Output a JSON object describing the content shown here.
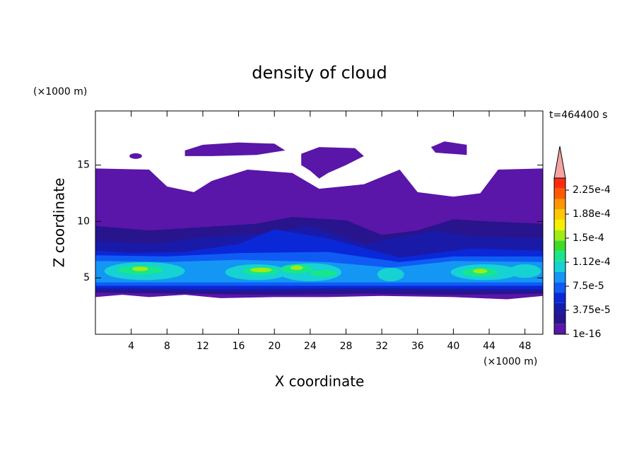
{
  "chart_data": {
    "type": "contour",
    "title": "density of cloud",
    "x_label": "X coordinate",
    "y_label": "Z coordinate",
    "x_unit": "(×1000 m)",
    "y_unit": "(×1000 m)",
    "annotation": "t=464400 s",
    "xlim": [
      0,
      50
    ],
    "xticks": [
      4,
      8,
      12,
      16,
      20,
      24,
      28,
      32,
      36,
      40,
      44,
      48
    ],
    "ylim": [
      0,
      19.8
    ],
    "yticks": [
      5,
      10,
      15
    ],
    "colorbar": {
      "lim": [
        1e-16,
        0.00024375
      ],
      "ticks": [
        1e-16,
        {
          "value": 3.75e-05,
          "label": "3.75e-5"
        },
        {
          "value": 7.5e-05,
          "label": "7.5e-5"
        },
        {
          "value": 0.0001125,
          "label": "1.12e-4"
        },
        {
          "value": 0.00015,
          "label": "1.5e-4"
        },
        {
          "value": 0.0001875,
          "label": "1.88e-4"
        },
        {
          "value": 0.000225,
          "label": "2.25e-4"
        }
      ],
      "colors": [
        "#5a16a8",
        "#28148c",
        "#1a1aa8",
        "#0a28d8",
        "#0f5cf5",
        "#1496f5",
        "#16d2d2",
        "#18e68c",
        "#3cdc28",
        "#a0ec14",
        "#f5f000",
        "#ffc800",
        "#ff9600",
        "#ff5a00",
        "#ff2a10"
      ],
      "extend_color": "#f4a4a4"
    }
  }
}
